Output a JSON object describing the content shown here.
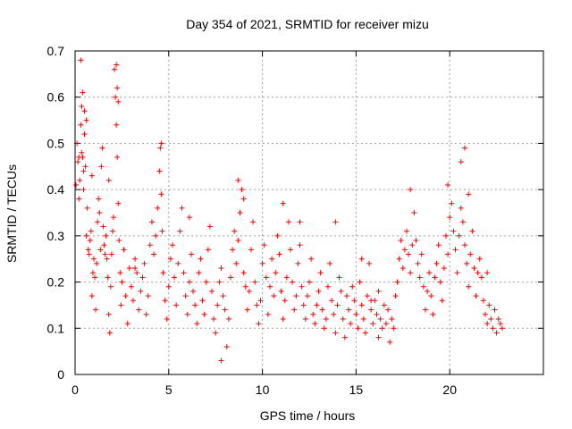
{
  "chart_data": {
    "type": "scatter",
    "title": "Day 354 of 2021, SRMTID for receiver mizu",
    "xlabel": "GPS time / hours",
    "ylabel": "SRMTID / TECUs",
    "xlim": [
      0,
      25
    ],
    "ylim": [
      0,
      0.7
    ],
    "xticks": [
      0,
      5,
      10,
      15,
      20
    ],
    "xtick_labels": [
      "0",
      "5",
      "10",
      "15",
      "20"
    ],
    "yticks": [
      0,
      0.1,
      0.2,
      0.3,
      0.4,
      0.5,
      0.6,
      0.7
    ],
    "ytick_labels": [
      "0",
      "0.1",
      "0.2",
      "0.3",
      "0.4",
      "0.5",
      "0.6",
      "0.7"
    ],
    "grid": true,
    "marker": "+",
    "color": "#ff0000",
    "series": [
      {
        "name": "SRMTID",
        "x": [
          0.05,
          0.1,
          0.15,
          0.2,
          0.25,
          0.3,
          0.35,
          0.4,
          0.45,
          0.5,
          0.55,
          0.6,
          0.65,
          0.7,
          0.75,
          0.8,
          0.85,
          0.9,
          0.95,
          1.0,
          1.05,
          1.1,
          1.15,
          1.2,
          1.25,
          1.3,
          1.35,
          1.4,
          1.45,
          1.5,
          1.55,
          1.6,
          1.65,
          1.7,
          1.75,
          1.8,
          1.85,
          1.9,
          1.95,
          2.0,
          2.05,
          2.1,
          2.15,
          2.2,
          2.25,
          2.3,
          2.35,
          2.4,
          2.45,
          2.5,
          2.6,
          2.7,
          2.8,
          2.9,
          3.0,
          3.1,
          3.2,
          3.3,
          3.4,
          3.5,
          3.6,
          3.7,
          3.8,
          3.9,
          4.0,
          4.1,
          4.2,
          4.3,
          4.4,
          4.5,
          4.55,
          4.6,
          4.65,
          4.7,
          4.8,
          4.9,
          5.0,
          5.1,
          5.2,
          5.3,
          5.4,
          5.5,
          5.6,
          5.7,
          5.8,
          5.9,
          6.0,
          6.1,
          6.2,
          6.3,
          6.4,
          6.5,
          6.6,
          6.7,
          6.8,
          6.9,
          7.0,
          7.1,
          7.2,
          7.3,
          7.4,
          7.5,
          7.6,
          7.7,
          7.8,
          7.9,
          8.0,
          8.1,
          8.2,
          8.3,
          8.4,
          8.5,
          8.6,
          8.7,
          8.8,
          8.9,
          9.0,
          9.1,
          9.2,
          9.3,
          9.4,
          9.5,
          9.6,
          9.7,
          9.8,
          9.9,
          10.0,
          10.1,
          10.2,
          10.3,
          10.4,
          10.5,
          10.6,
          10.7,
          10.8,
          10.9,
          11.0,
          11.1,
          11.2,
          11.3,
          11.4,
          11.5,
          11.6,
          11.7,
          11.8,
          11.9,
          12.0,
          12.1,
          12.2,
          12.3,
          12.4,
          12.5,
          12.6,
          12.7,
          12.8,
          12.9,
          13.0,
          13.1,
          13.2,
          13.3,
          13.4,
          13.5,
          13.6,
          13.7,
          13.8,
          13.9,
          14.0,
          14.1,
          14.2,
          14.3,
          14.4,
          14.5,
          14.6,
          14.7,
          14.8,
          14.9,
          15.0,
          15.1,
          15.2,
          15.3,
          15.4,
          15.5,
          15.6,
          15.7,
          15.8,
          15.9,
          16.0,
          16.1,
          16.2,
          16.3,
          16.4,
          16.5,
          16.6,
          16.7,
          16.8,
          16.9,
          17.0,
          17.1,
          17.2,
          17.3,
          17.4,
          17.5,
          17.6,
          17.7,
          17.8,
          17.9,
          18.0,
          18.1,
          18.2,
          18.3,
          18.4,
          18.5,
          18.6,
          18.7,
          18.8,
          18.9,
          19.0,
          19.1,
          19.2,
          19.3,
          19.4,
          19.5,
          19.6,
          19.7,
          19.8,
          19.9,
          20.0,
          20.1,
          20.2,
          20.3,
          20.4,
          20.5,
          20.6,
          20.7,
          20.8,
          20.9,
          21.0,
          21.1,
          21.2,
          21.3,
          21.4,
          21.5,
          21.6,
          21.7,
          21.8,
          21.9,
          22.0,
          22.1,
          22.2,
          22.3,
          22.4,
          22.5,
          22.6,
          22.7,
          22.8,
          0.3,
          0.4,
          0.5,
          0.6,
          2.2,
          2.3,
          4.6,
          0.35,
          0.45,
          2.25,
          8.7,
          11.1,
          13.9,
          15.3,
          17.9,
          19.9,
          20.6,
          20.8,
          21.0,
          16.2,
          15.8,
          12.0,
          9.0,
          7.8,
          6.1,
          3.2,
          1.8,
          0.2,
          0.9,
          22.0
        ],
        "values": [
          0.41,
          0.5,
          0.46,
          0.38,
          0.42,
          0.54,
          0.58,
          0.47,
          0.4,
          0.52,
          0.45,
          0.3,
          0.36,
          0.27,
          0.26,
          0.29,
          0.31,
          0.17,
          0.22,
          0.25,
          0.21,
          0.14,
          0.24,
          0.33,
          0.38,
          0.35,
          0.27,
          0.45,
          0.49,
          0.32,
          0.28,
          0.26,
          0.3,
          0.25,
          0.21,
          0.13,
          0.09,
          0.19,
          0.26,
          0.31,
          0.34,
          0.66,
          0.6,
          0.54,
          0.47,
          0.37,
          0.29,
          0.22,
          0.15,
          0.2,
          0.27,
          0.17,
          0.11,
          0.23,
          0.19,
          0.16,
          0.25,
          0.22,
          0.14,
          0.18,
          0.21,
          0.24,
          0.13,
          0.17,
          0.28,
          0.33,
          0.26,
          0.3,
          0.36,
          0.44,
          0.49,
          0.39,
          0.31,
          0.22,
          0.16,
          0.12,
          0.19,
          0.25,
          0.28,
          0.21,
          0.15,
          0.24,
          0.31,
          0.36,
          0.22,
          0.17,
          0.13,
          0.2,
          0.26,
          0.18,
          0.15,
          0.11,
          0.22,
          0.25,
          0.16,
          0.13,
          0.2,
          0.27,
          0.32,
          0.18,
          0.12,
          0.09,
          0.15,
          0.2,
          0.23,
          0.17,
          0.14,
          0.06,
          0.12,
          0.21,
          0.27,
          0.31,
          0.24,
          0.29,
          0.35,
          0.4,
          0.22,
          0.19,
          0.14,
          0.18,
          0.27,
          0.33,
          0.2,
          0.15,
          0.11,
          0.16,
          0.24,
          0.28,
          0.21,
          0.13,
          0.19,
          0.25,
          0.17,
          0.22,
          0.3,
          0.26,
          0.18,
          0.12,
          0.16,
          0.21,
          0.33,
          0.27,
          0.2,
          0.14,
          0.17,
          0.24,
          0.28,
          0.19,
          0.15,
          0.12,
          0.17,
          0.2,
          0.25,
          0.13,
          0.11,
          0.15,
          0.18,
          0.22,
          0.14,
          0.1,
          0.12,
          0.19,
          0.24,
          0.16,
          0.13,
          0.09,
          0.15,
          0.21,
          0.18,
          0.12,
          0.08,
          0.17,
          0.14,
          0.11,
          0.19,
          0.16,
          0.13,
          0.1,
          0.2,
          0.15,
          0.12,
          0.09,
          0.17,
          0.24,
          0.14,
          0.11,
          0.16,
          0.13,
          0.08,
          0.12,
          0.1,
          0.15,
          0.11,
          0.14,
          0.07,
          0.12,
          0.1,
          0.17,
          0.2,
          0.25,
          0.29,
          0.23,
          0.27,
          0.31,
          0.26,
          0.22,
          0.28,
          0.35,
          0.29,
          0.24,
          0.21,
          0.26,
          0.19,
          0.14,
          0.18,
          0.22,
          0.17,
          0.13,
          0.21,
          0.24,
          0.28,
          0.2,
          0.16,
          0.23,
          0.3,
          0.26,
          0.34,
          0.37,
          0.31,
          0.27,
          0.22,
          0.3,
          0.36,
          0.33,
          0.28,
          0.24,
          0.19,
          0.26,
          0.31,
          0.23,
          0.17,
          0.22,
          0.25,
          0.21,
          0.16,
          0.13,
          0.11,
          0.15,
          0.12,
          0.1,
          0.14,
          0.09,
          0.12,
          0.11,
          0.1,
          0.68,
          0.61,
          0.57,
          0.55,
          0.67,
          0.59,
          0.5,
          0.48,
          0.44,
          0.62,
          0.42,
          0.37,
          0.33,
          0.25,
          0.4,
          0.41,
          0.46,
          0.49,
          0.39,
          0.18,
          0.16,
          0.33,
          0.38,
          0.03,
          0.34,
          0.23,
          0.42,
          0.47,
          0.43,
          0.22
        ]
      }
    ]
  }
}
